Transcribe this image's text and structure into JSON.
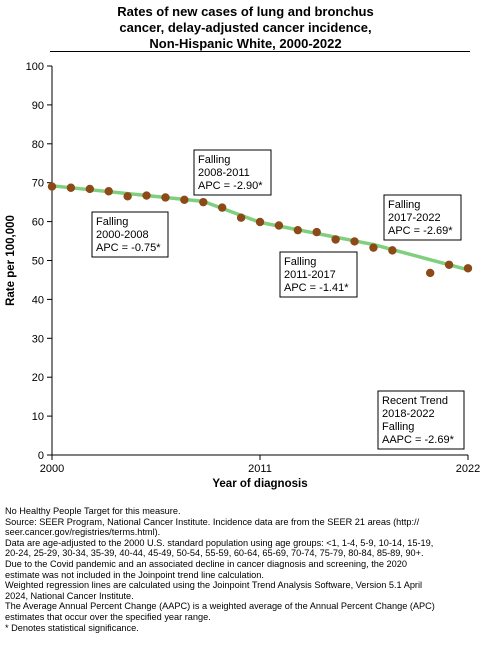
{
  "title_lines": [
    "Rates of new cases of lung and bronchus",
    "cancer, delay-adjusted cancer incidence,",
    "Non-Hispanic White,  2000-2022"
  ],
  "chart_data": {
    "type": "scatter",
    "xlabel": "Year of diagnosis",
    "ylabel": "Rate per 100,000",
    "xlim": [
      2000,
      2022
    ],
    "ylim": [
      0,
      100
    ],
    "x_ticks": [
      "2000",
      "2011",
      "2022"
    ],
    "y_ticks": [
      "0",
      "10",
      "20",
      "30",
      "40",
      "50",
      "60",
      "70",
      "80",
      "90",
      "100"
    ],
    "grid": false,
    "colors": {
      "point": "#8b4a17",
      "trend": "#7fcf7f",
      "axis": "#000000"
    },
    "series": [
      {
        "name": "",
        "x": [
          2000,
          2001,
          2002,
          2003,
          2004,
          2005,
          2006,
          2007,
          2008,
          2009,
          2010,
          2011,
          2012,
          2013,
          2014,
          2015,
          2016,
          2017,
          2018,
          2019,
          2020,
          2021,
          2022
        ],
        "y": [
          69.0,
          68.7,
          68.4,
          67.8,
          66.5,
          66.7,
          66.2,
          65.6,
          65.0,
          63.6,
          61.0,
          59.9,
          59.0,
          57.8,
          57.3,
          55.4,
          54.9,
          53.3,
          52.6,
          null,
          46.8,
          48.9,
          48.0
        ]
      }
    ],
    "trend_segments": [
      {
        "x": [
          2000,
          2008
        ],
        "y": [
          69.2,
          65.2
        ]
      },
      {
        "x": [
          2008,
          2011
        ],
        "y": [
          65.2,
          59.8
        ]
      },
      {
        "x": [
          2011,
          2017
        ],
        "y": [
          59.8,
          54.1
        ]
      },
      {
        "x": [
          2017,
          2022
        ],
        "y": [
          54.1,
          47.6
        ]
      }
    ],
    "annotations": [
      {
        "lines": [
          "Falling",
          "2000-2008",
          "APC = -0.75*"
        ]
      },
      {
        "lines": [
          "Falling",
          "2008-2011",
          "APC = -2.90*"
        ]
      },
      {
        "lines": [
          "Falling",
          "2011-2017",
          "APC = -1.41*"
        ]
      },
      {
        "lines": [
          "Falling",
          "2017-2022",
          "APC = -2.69*"
        ]
      },
      {
        "lines": [
          "Recent Trend",
          "2018-2022",
          "Falling",
          "AAPC = -2.69*"
        ]
      }
    ]
  },
  "notes": [
    "No Healthy People Target for this measure.",
    "Source: SEER Program, National Cancer Institute. Incidence data are from the SEER 21 areas (http://",
    "seer.cancer.gov/registries/terms.html).",
    "Data are age-adjusted to the 2000 U.S. standard population using age groups: <1, 1-4, 5-9, 10-14, 15-19,",
    "20-24, 25-29, 30-34, 35-39, 40-44, 45-49, 50-54, 55-59, 60-64, 65-69, 70-74, 75-79, 80-84, 85-89, 90+.",
    "Due to the Covid pandemic and an associated decline in cancer diagnosis and screening, the 2020",
    "estimate was not included in the Joinpoint trend line calculation.",
    "Weighted regression lines are calculated using the Joinpoint Trend Analysis Software, Version 5.1 April",
    "2024, National Cancer Institute.",
    "The Average Annual Percent Change (AAPC) is a weighted average of the Annual Percent Change (APC)",
    "estimates that occur over the specified year range.",
    "* Denotes statistical significance."
  ]
}
